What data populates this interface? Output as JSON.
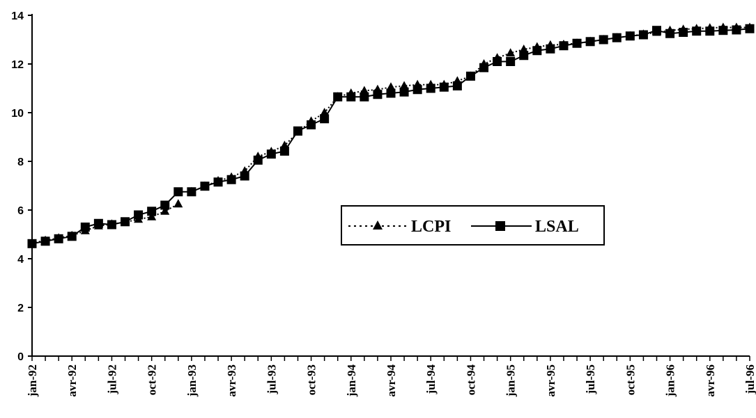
{
  "chart_data": {
    "type": "line",
    "ylim": [
      0,
      14
    ],
    "yticks": [
      0,
      2,
      4,
      6,
      8,
      10,
      12,
      14
    ],
    "x": [
      "jan-92",
      "feb-92",
      "mar-92",
      "avr-92",
      "may-92",
      "jun-92",
      "jul-92",
      "aug-92",
      "sep-92",
      "oct-92",
      "nov-92",
      "dec-92",
      "jan-93",
      "feb-93",
      "mar-93",
      "avr-93",
      "may-93",
      "jun-93",
      "jul-93",
      "aug-93",
      "sep-93",
      "oct-93",
      "nov-93",
      "dec-93",
      "jan-94",
      "feb-94",
      "mar-94",
      "avr-94",
      "may-94",
      "jun-94",
      "jul-94",
      "aug-94",
      "sep-94",
      "oct-94",
      "nov-94",
      "dec-94",
      "jan-95",
      "feb-95",
      "mar-95",
      "avr-95",
      "may-95",
      "jun-95",
      "jul-95",
      "aug-95",
      "sep-95",
      "oct-95",
      "nov-95",
      "dec-95",
      "jan-96",
      "feb-96",
      "mar-96",
      "avr-96",
      "may-96",
      "jun-96",
      "jul-96"
    ],
    "xtick_labels": [
      "jan-92",
      "avr-92",
      "jul-92",
      "oct-92",
      "jan-93",
      "avr-93",
      "jul-93",
      "oct-93",
      "jan-94",
      "avr-94",
      "jul-94",
      "oct-94",
      "jan-95",
      "avr-95",
      "jul-95",
      "oct-95",
      "jan-96",
      "avr-96",
      "jul-96"
    ],
    "series": [
      {
        "name": "LCPI",
        "style": "dotted",
        "marker": "triangle",
        "color": "#000000",
        "values": [
          4.65,
          4.75,
          4.85,
          4.95,
          5.15,
          5.35,
          5.42,
          5.5,
          5.62,
          5.72,
          5.95,
          6.25,
          null,
          null,
          null,
          null,
          null,
          null,
          null,
          null,
          null,
          null,
          null,
          null,
          null,
          null,
          null,
          null,
          null,
          null,
          null,
          null,
          null,
          null,
          null,
          null,
          null,
          null,
          null,
          null,
          null,
          null,
          null,
          null,
          null,
          null,
          null,
          null,
          null,
          null,
          null,
          null,
          null,
          null,
          null
        ]
      },
      {
        "name": "LSAL",
        "style": "solid",
        "marker": "square",
        "color": "#000000",
        "values": [
          4.62,
          4.72,
          4.82,
          4.92,
          5.3,
          5.45,
          5.4,
          5.52,
          5.8,
          5.95,
          6.2,
          6.75,
          6.75,
          6.98,
          7.15,
          7.25,
          7.4,
          8.05,
          8.3,
          8.42,
          9.25,
          9.5,
          9.75,
          10.65,
          10.65,
          10.65,
          10.75,
          10.8,
          10.85,
          10.95,
          11.0,
          11.05,
          11.1,
          11.5,
          11.85,
          12.1,
          12.1,
          12.35,
          12.55,
          12.62,
          12.75,
          12.85,
          12.92,
          13.0,
          13.08,
          13.15,
          13.2,
          13.38,
          13.25,
          13.3,
          13.35,
          13.35,
          13.38,
          13.4,
          13.45
        ]
      },
      {
        "name": "LCPI",
        "style": "dotted",
        "marker": "triangle",
        "color": "#000000",
        "values": [
          null,
          null,
          null,
          null,
          null,
          null,
          null,
          null,
          null,
          null,
          null,
          null,
          6.75,
          6.98,
          7.2,
          7.35,
          7.6,
          8.2,
          8.4,
          8.65,
          9.2,
          9.65,
          10.0,
          10.65,
          10.8,
          10.9,
          10.95,
          11.05,
          11.1,
          11.15,
          11.15,
          11.15,
          11.3,
          11.5,
          12.0,
          12.25,
          12.45,
          12.6,
          12.7,
          12.78,
          12.8,
          12.85,
          12.92,
          13.0,
          13.08,
          13.15,
          13.22,
          13.3,
          13.38,
          13.42,
          13.45,
          13.48,
          13.5,
          13.5,
          13.5
        ]
      }
    ],
    "legend": {
      "placement": "center-right",
      "labels": [
        "LCPI",
        "LSAL"
      ]
    }
  }
}
